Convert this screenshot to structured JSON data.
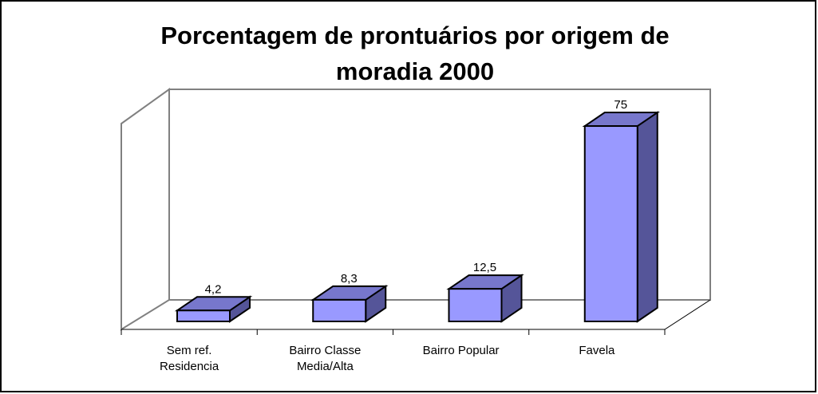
{
  "chart_data": {
    "type": "bar3d",
    "title": "Porcentagem de prontuários por origem de moradia 2000",
    "categories": [
      "Sem ref. Residencia",
      "Bairro Classe Media/Alta",
      "Bairro Popular",
      "Favela"
    ],
    "values": [
      4.2,
      8.3,
      12.5,
      75
    ],
    "value_labels": [
      "4,2",
      "8,3",
      "12,5",
      "75"
    ],
    "color": "#9999ff",
    "ylim": [
      0,
      80
    ]
  }
}
